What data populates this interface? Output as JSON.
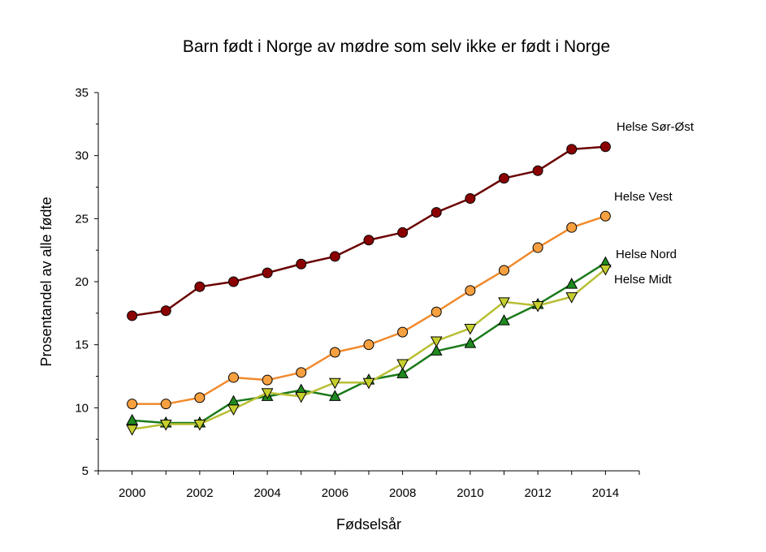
{
  "chart_data": {
    "type": "line",
    "title": "Barn født i Norge av mødre som selv ikke er født i Norge",
    "xlabel": "Fødselsår",
    "ylabel": "Prosentandel av alle fødte",
    "xlim": [
      1999,
      2015
    ],
    "ylim": [
      5,
      35
    ],
    "x_ticks": [
      2000,
      2002,
      2004,
      2006,
      2008,
      2010,
      2012,
      2014
    ],
    "y_ticks": [
      5,
      10,
      15,
      20,
      25,
      30,
      35
    ],
    "grid": false,
    "x": [
      2000,
      2001,
      2002,
      2003,
      2004,
      2005,
      2006,
      2007,
      2008,
      2009,
      2010,
      2011,
      2012,
      2013,
      2014
    ],
    "series": [
      {
        "name": "Helse Sør-Øst",
        "marker": "circle",
        "line_color": "#6b0000",
        "marker_color": "#8b0000",
        "values": [
          17.3,
          17.7,
          19.6,
          20.0,
          20.7,
          21.4,
          22.0,
          23.3,
          23.9,
          25.5,
          26.6,
          28.2,
          28.8,
          30.5,
          30.7
        ]
      },
      {
        "name": "Helse Vest",
        "marker": "circle",
        "line_color": "#f08a2c",
        "marker_color": "#f7a040",
        "values": [
          10.3,
          10.3,
          10.8,
          12.4,
          12.2,
          12.8,
          14.4,
          15.0,
          16.0,
          17.6,
          19.3,
          20.9,
          22.7,
          24.3,
          25.2
        ]
      },
      {
        "name": "Helse Nord",
        "marker": "triangle-up",
        "line_color": "#1a7a1a",
        "marker_color": "#1f8a1f",
        "values": [
          9.0,
          8.8,
          8.8,
          10.5,
          10.9,
          11.4,
          10.9,
          12.2,
          12.7,
          14.5,
          15.1,
          16.9,
          18.2,
          19.8,
          21.5
        ]
      },
      {
        "name": "Helse Midt",
        "marker": "triangle-down",
        "line_color": "#b8bf33",
        "marker_color": "#c7cf2f",
        "values": [
          8.3,
          8.7,
          8.7,
          9.9,
          11.2,
          10.9,
          12.0,
          12.0,
          13.5,
          15.3,
          16.3,
          18.4,
          18.1,
          18.8,
          21.0
        ]
      }
    ]
  }
}
